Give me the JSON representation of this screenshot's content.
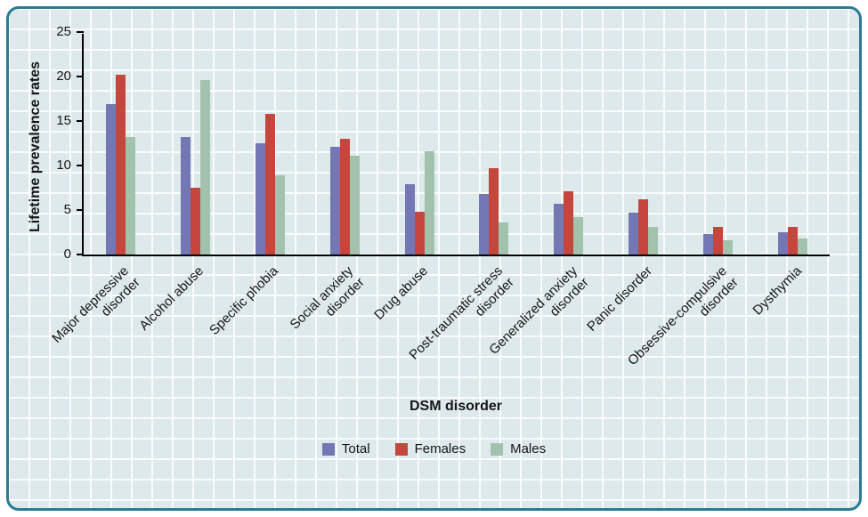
{
  "chart_data": {
    "type": "bar",
    "title": "",
    "xlabel": "DSM disorder",
    "ylabel": "Lifetime prevalence rates",
    "ylim": [
      0,
      25
    ],
    "yticks": [
      0,
      5,
      10,
      15,
      20,
      25
    ],
    "grid": true,
    "legend_position": "bottom",
    "categories": [
      "Major depressive\ndisorder",
      "Alcohol abuse",
      "Specific phobia",
      "Social anxiety\ndisorder",
      "Drug abuse",
      "Post-traumatic stress\ndisorder",
      "Generalized anxiety\ndisorder",
      "Panic disorder",
      "Obsessive-compulsive\ndisorder",
      "Dysthymia"
    ],
    "series": [
      {
        "name": "Total",
        "color": "#7378b5",
        "values": [
          16.9,
          13.2,
          12.5,
          12.1,
          7.9,
          6.8,
          5.7,
          4.7,
          2.3,
          2.5
        ]
      },
      {
        "name": "Females",
        "color": "#c5463c",
        "values": [
          20.2,
          7.5,
          15.8,
          13.0,
          4.8,
          9.7,
          7.1,
          6.2,
          3.1,
          3.1
        ]
      },
      {
        "name": "Males",
        "color": "#a3c2ad",
        "values": [
          13.2,
          19.6,
          8.9,
          11.1,
          11.6,
          3.6,
          4.2,
          3.1,
          1.6,
          1.8
        ]
      }
    ],
    "frame_border_color": "#2b7a93",
    "plot_background_color": "#dde9ea"
  }
}
